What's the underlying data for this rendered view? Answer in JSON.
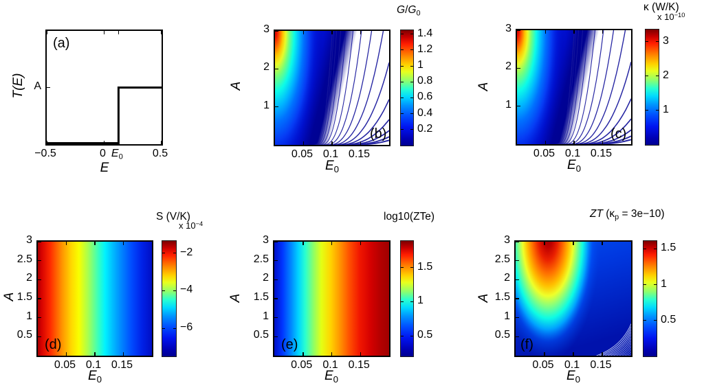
{
  "figure": {
    "background": "#ffffff"
  },
  "colors": {
    "jet_high": "#7d0000",
    "jet_red": "#ff1e00",
    "jet_yellow": "#ffd200",
    "jet_cyan": "#28ffd2",
    "jet_blue": "#0014f0",
    "jet_low": "#000091",
    "contour_line": "#1b1b9e",
    "axes": "#000000"
  },
  "chart_data": [
    {
      "id": "a",
      "type": "line",
      "label": "(a)",
      "xlabel_segs": [
        {
          "t": "E",
          "i": true
        }
      ],
      "ylabel_segs": [
        {
          "t": "T(E)",
          "i": true
        }
      ],
      "x_range": [
        -0.5,
        0.5
      ],
      "y_range": [
        0,
        1
      ],
      "xticks": [
        {
          "v": -0.5,
          "t": "−0.5"
        },
        {
          "v": 0,
          "t": "0"
        },
        {
          "v": 0.125,
          "segs": [
            {
              "t": "E",
              "i": true
            },
            {
              "t": "0",
              "sub": true
            }
          ]
        },
        {
          "v": 0.5,
          "t": "0.5"
        }
      ],
      "yticks": [
        {
          "v": 0.5,
          "t": "A"
        }
      ],
      "step": {
        "E0": 0.125,
        "level_v": 0.5,
        "level_label": "A",
        "description": "Transmission step function: T(E)=0 for E<E0, T(E)=A for E>=E0"
      }
    },
    {
      "id": "b",
      "type": "heatmap",
      "label": "(b)",
      "xlabel_segs": [
        {
          "t": "E",
          "i": true
        },
        {
          "t": "0",
          "sub": true
        }
      ],
      "ylabel_segs": [
        {
          "t": "A",
          "i": true
        }
      ],
      "x_range": [
        0,
        0.2
      ],
      "y_range": [
        0,
        3
      ],
      "xticks": [
        {
          "v": 0.05,
          "t": "0.05"
        },
        {
          "v": 0.1,
          "t": "0.1"
        },
        {
          "v": 0.15,
          "t": "0.15"
        }
      ],
      "yticks": [
        {
          "v": 1,
          "t": "1"
        },
        {
          "v": 2,
          "t": "2"
        },
        {
          "v": 3,
          "t": "3"
        }
      ],
      "colorbar": {
        "title_segs": [
          {
            "t": "G",
            "i": true
          },
          {
            "t": "/"
          },
          {
            "t": "G",
            "i": true
          },
          {
            "t": "0",
            "sub": true
          }
        ],
        "range": [
          0,
          1.45
        ],
        "ticks": [
          {
            "v": 1.4,
            "t": "1.4"
          },
          {
            "v": 1.2,
            "t": "1.2"
          },
          {
            "v": 1,
            "t": "1"
          },
          {
            "v": 0.8,
            "t": "0.8"
          },
          {
            "v": 0.6,
            "t": "0.6"
          },
          {
            "v": 0.4,
            "t": "0.4"
          },
          {
            "v": 0.2,
            "t": "0.2"
          }
        ]
      },
      "samples": {
        "E0": [
          0.02,
          0.06,
          0.1,
          0.14,
          0.18
        ],
        "A": [
          3,
          2.25,
          1.5,
          0.75,
          0.1
        ],
        "values": [
          [
            1.4,
            0.55,
            0.15,
            0.04,
            0.01
          ],
          [
            1.0,
            0.4,
            0.11,
            0.03,
            0.008
          ],
          [
            0.7,
            0.28,
            0.08,
            0.02,
            0.005
          ],
          [
            0.35,
            0.14,
            0.04,
            0.01,
            0.003
          ],
          [
            0.05,
            0.02,
            0.006,
            0.002,
            0.0004
          ]
        ]
      },
      "notes": "Conductance ratio, maximum at small E0 / large A; blue contour lines fan out toward lower-right white region"
    },
    {
      "id": "c",
      "type": "heatmap",
      "label": "(c)",
      "xlabel_segs": [
        {
          "t": "E",
          "i": true
        },
        {
          "t": "0",
          "sub": true
        }
      ],
      "ylabel_segs": [
        {
          "t": "A",
          "i": true
        }
      ],
      "x_range": [
        0,
        0.2
      ],
      "y_range": [
        0,
        3
      ],
      "xticks": [
        {
          "v": 0.05,
          "t": "0.05"
        },
        {
          "v": 0.1,
          "t": "0.1"
        },
        {
          "v": 0.15,
          "t": "0.15"
        }
      ],
      "yticks": [
        {
          "v": 1,
          "t": "1"
        },
        {
          "v": 2,
          "t": "2"
        },
        {
          "v": 3,
          "t": "3"
        }
      ],
      "colorbar": {
        "title_segs": [
          {
            "t": "κ (W/K)"
          }
        ],
        "exp_segs": [
          {
            "t": "x 10"
          },
          {
            "t": "−10",
            "sup": true
          }
        ],
        "range": [
          0,
          3.35
        ],
        "ticks": [
          {
            "v": 3,
            "t": "3"
          },
          {
            "v": 2,
            "t": "2"
          },
          {
            "v": 1,
            "t": "1"
          }
        ]
      },
      "samples": {
        "E0": [
          0.02,
          0.06,
          0.1,
          0.14,
          0.18
        ],
        "A": [
          3,
          2.25,
          1.5,
          0.75,
          0.1
        ],
        "values": [
          [
            3.4,
            1.3,
            0.35,
            0.1,
            0.03
          ],
          [
            2.4,
            0.95,
            0.26,
            0.07,
            0.02
          ],
          [
            1.7,
            0.65,
            0.18,
            0.05,
            0.013
          ],
          [
            0.85,
            0.33,
            0.09,
            0.025,
            0.007
          ],
          [
            0.12,
            0.05,
            0.013,
            0.004,
            0.001
          ]
        ]
      },
      "notes": "Electron thermal conductance (units 1e-10 W/K); same pattern as panel b with contour fan"
    },
    {
      "id": "d",
      "type": "heatmap",
      "label": "(d)",
      "xlabel_segs": [
        {
          "t": "E",
          "i": true
        },
        {
          "t": "0",
          "sub": true
        }
      ],
      "ylabel_segs": [
        {
          "t": "A",
          "i": true
        }
      ],
      "x_range": [
        0,
        0.2
      ],
      "y_range": [
        0,
        3
      ],
      "xticks": [
        {
          "v": 0.05,
          "t": "0.05"
        },
        {
          "v": 0.1,
          "t": "0.1"
        },
        {
          "v": 0.15,
          "t": "0.15"
        }
      ],
      "yticks": [
        {
          "v": 0.5,
          "t": "0.5"
        },
        {
          "v": 1,
          "t": "1"
        },
        {
          "v": 1.5,
          "t": "1.5"
        },
        {
          "v": 2,
          "t": "2"
        },
        {
          "v": 2.5,
          "t": "2.5"
        },
        {
          "v": 3,
          "t": "3"
        }
      ],
      "colorbar": {
        "title_segs": [
          {
            "t": "S (V/K)"
          }
        ],
        "exp_segs": [
          {
            "t": "x 10"
          },
          {
            "t": "−4",
            "sup": true
          }
        ],
        "range": [
          -7.5,
          -1.35
        ],
        "ticks": [
          {
            "v": -2,
            "t": "−2"
          },
          {
            "v": -4,
            "t": "−4"
          },
          {
            "v": -6,
            "t": "−6"
          }
        ]
      },
      "samples": {
        "E0": [
          0.02,
          0.06,
          0.1,
          0.14,
          0.18
        ],
        "A": [
          3,
          2.25,
          1.5,
          0.75,
          0.1
        ],
        "values": [
          [
            -1.6,
            -3.0,
            -4.4,
            -5.8,
            -7.0
          ],
          [
            -1.6,
            -3.0,
            -4.4,
            -5.8,
            -7.0
          ],
          [
            -1.6,
            -3.0,
            -4.4,
            -5.8,
            -7.0
          ],
          [
            -1.6,
            -3.0,
            -4.4,
            -5.8,
            -7.0
          ],
          [
            -1.6,
            -3.0,
            -4.4,
            -5.8,
            -7.0
          ]
        ]
      },
      "notes": "Seebeck coefficient (units 1e-4 V/K); depends only on E0 (vertical color bands), red left to dark blue right"
    },
    {
      "id": "e",
      "type": "heatmap",
      "label": "(e)",
      "xlabel_segs": [
        {
          "t": "E",
          "i": true
        },
        {
          "t": "0",
          "sub": true
        }
      ],
      "ylabel_segs": [
        {
          "t": "A",
          "i": true
        }
      ],
      "x_range": [
        0,
        0.2
      ],
      "y_range": [
        0,
        3
      ],
      "xticks": [
        {
          "v": 0.05,
          "t": "0.05"
        },
        {
          "v": 0.1,
          "t": "0.1"
        },
        {
          "v": 0.15,
          "t": "0.15"
        }
      ],
      "yticks": [
        {
          "v": 0.5,
          "t": "0.5"
        },
        {
          "v": 1,
          "t": "1"
        },
        {
          "v": 1.5,
          "t": "1.5"
        },
        {
          "v": 2,
          "t": "2"
        },
        {
          "v": 2.5,
          "t": "2.5"
        },
        {
          "v": 3,
          "t": "3"
        }
      ],
      "colorbar": {
        "title_segs": [
          {
            "t": "log10(ZTe)"
          }
        ],
        "range": [
          0.2,
          1.89
        ],
        "ticks": [
          {
            "v": 1.5,
            "t": "1.5"
          },
          {
            "v": 1,
            "t": "1"
          },
          {
            "v": 0.5,
            "t": "0.5"
          }
        ]
      },
      "samples": {
        "E0": [
          0.02,
          0.06,
          0.1,
          0.14,
          0.18
        ],
        "A": [
          3,
          2.25,
          1.5,
          0.75,
          0.1
        ],
        "values": [
          [
            0.3,
            0.85,
            1.3,
            1.6,
            1.85
          ],
          [
            0.3,
            0.85,
            1.3,
            1.6,
            1.85
          ],
          [
            0.3,
            0.85,
            1.3,
            1.6,
            1.85
          ],
          [
            0.3,
            0.85,
            1.3,
            1.6,
            1.85
          ],
          [
            0.3,
            0.85,
            1.3,
            1.6,
            1.85
          ]
        ]
      },
      "notes": "Electronic figure of merit (log scale); depends only on E0, dark blue left to dark red right"
    },
    {
      "id": "f",
      "type": "heatmap",
      "label": "(f)",
      "xlabel_segs": [
        {
          "t": "E",
          "i": true
        },
        {
          "t": "0",
          "sub": true
        }
      ],
      "ylabel_segs": [
        {
          "t": "A",
          "i": true
        }
      ],
      "x_range": [
        0,
        0.2
      ],
      "y_range": [
        0,
        3
      ],
      "xticks": [
        {
          "v": 0.05,
          "t": "0.05"
        },
        {
          "v": 0.1,
          "t": "0.1"
        },
        {
          "v": 0.15,
          "t": "0.15"
        }
      ],
      "yticks": [
        {
          "v": 0.5,
          "t": "0.5"
        },
        {
          "v": 1,
          "t": "1"
        },
        {
          "v": 1.5,
          "t": "1.5"
        },
        {
          "v": 2,
          "t": "2"
        },
        {
          "v": 2.5,
          "t": "2.5"
        },
        {
          "v": 3,
          "t": "3"
        }
      ],
      "colorbar": {
        "title_segs": [
          {
            "t": "ZT",
            "i": true
          },
          {
            "t": " (κ"
          },
          {
            "t": "p",
            "sub": true
          },
          {
            "t": " = 3e−10)"
          }
        ],
        "range": [
          0,
          1.61
        ],
        "ticks": [
          {
            "v": 1.5,
            "t": "1.5"
          },
          {
            "v": 1,
            "t": "1"
          },
          {
            "v": 0.5,
            "t": "0.5"
          }
        ]
      },
      "samples": {
        "E0": [
          0.02,
          0.05,
          0.1,
          0.14,
          0.18
        ],
        "A": [
          3,
          2.25,
          1.5,
          0.75,
          0.1
        ],
        "values": [
          [
            1.3,
            1.6,
            0.95,
            0.45,
            0.28
          ],
          [
            0.95,
            1.3,
            0.7,
            0.38,
            0.24
          ],
          [
            0.6,
            0.85,
            0.5,
            0.3,
            0.2
          ],
          [
            0.35,
            0.45,
            0.32,
            0.22,
            0.15
          ],
          [
            0.08,
            0.12,
            0.1,
            0.07,
            0.05
          ]
        ]
      },
      "notes": "Full figure of merit with phonon conductance 3e-10; peak ZT≈1.6 near E0=0.05, A=3; thin light contour fan in bottom-right corner"
    }
  ]
}
